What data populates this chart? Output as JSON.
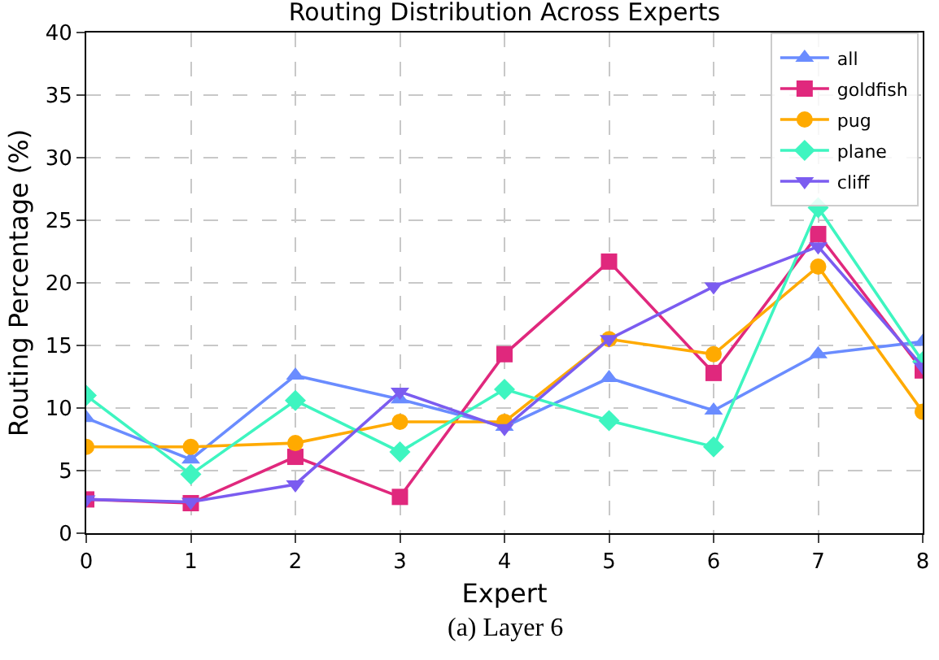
{
  "chart_data": {
    "type": "line",
    "title": "Routing Distribution Across Experts",
    "xlabel": "Expert",
    "ylabel": "Routing Percentage (%)",
    "annotations": [
      "(a) Layer 6"
    ],
    "x": [
      0,
      1,
      2,
      3,
      4,
      5,
      6,
      7,
      8
    ],
    "series": [
      {
        "name": "all",
        "color": "#6a8cff",
        "marker": "triangle",
        "values": [
          9.2,
          5.9,
          12.6,
          10.7,
          8.5,
          12.4,
          9.8,
          14.3,
          15.3
        ]
      },
      {
        "name": "goldfish",
        "color": "#e0287d",
        "marker": "square",
        "values": [
          2.7,
          2.4,
          6.1,
          2.9,
          14.3,
          21.7,
          12.8,
          23.9,
          13.0
        ]
      },
      {
        "name": "pug",
        "color": "#ffaa00",
        "marker": "circle",
        "values": [
          6.9,
          6.9,
          7.2,
          8.9,
          8.9,
          15.5,
          14.3,
          21.3,
          9.7
        ]
      },
      {
        "name": "plane",
        "color": "#3ef5c0",
        "marker": "diamond",
        "values": [
          11.0,
          4.7,
          10.6,
          6.5,
          11.5,
          9.0,
          6.9,
          26.0,
          13.7
        ]
      },
      {
        "name": "cliff",
        "color": "#7b5cf0",
        "marker": "triangle-down",
        "values": [
          2.7,
          2.5,
          3.9,
          11.3,
          8.4,
          15.5,
          19.7,
          22.9,
          13.3
        ]
      }
    ],
    "xlim": [
      0,
      8
    ],
    "xticks": [
      0,
      1,
      2,
      3,
      4,
      5,
      6,
      7,
      8
    ],
    "ylim": [
      0,
      40
    ],
    "yticks": [
      0,
      5,
      10,
      15,
      20,
      25,
      30,
      35,
      40
    ],
    "grid": true,
    "legend": "top right",
    "line_style": "solid"
  }
}
